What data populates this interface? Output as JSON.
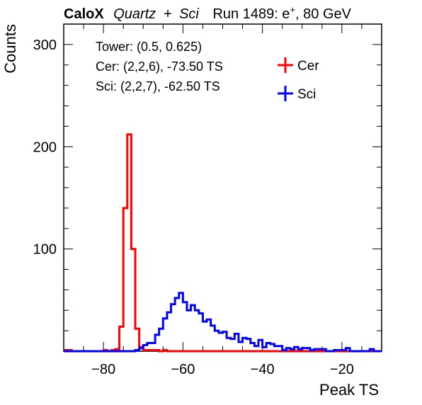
{
  "chart_data": {
    "type": "line",
    "title": {
      "experiment": "CaloX",
      "materials_a": "Quartz",
      "materials_plus": "+",
      "materials_b": "Sci",
      "run_text": "Run 1489: e",
      "run_sup": "+",
      "energy_text": ", 80 GeV"
    },
    "xlabel": "Peak TS",
    "ylabel": "Counts",
    "xlim": [
      -90,
      -10
    ],
    "ylim": [
      0,
      320
    ],
    "x_ticks": [
      -80,
      -60,
      -40,
      -20
    ],
    "x_tick_labels": [
      "−80",
      "−60",
      "−40",
      "−20"
    ],
    "y_ticks": [
      100,
      200,
      300
    ],
    "y_tick_labels": [
      "100",
      "200",
      "300"
    ],
    "bin_width": 1,
    "info_lines": [
      "Tower: (0.5, 0.625)",
      "Cer: (2,2,6), -73.50 TS",
      "Sci: (2,2,7), -62.50 TS"
    ],
    "legend_position": "top-right",
    "series": [
      {
        "name": "Cer",
        "color": "#ff0000",
        "x_start": -90,
        "values": [
          1,
          1,
          0,
          0,
          0,
          0,
          0,
          0,
          0,
          0,
          1,
          0,
          1,
          2,
          24,
          140,
          212,
          100,
          22,
          4,
          1,
          1,
          1,
          1,
          0,
          1,
          0,
          0,
          0,
          0,
          0,
          0,
          0,
          0,
          0,
          0,
          0,
          0,
          0,
          0,
          0,
          0,
          0,
          0,
          0,
          0,
          0,
          0,
          0,
          0,
          0,
          0,
          0,
          0,
          0,
          0,
          0,
          0,
          0,
          0,
          0,
          0,
          0,
          0,
          0,
          0,
          0,
          0,
          0,
          0,
          0,
          0,
          0,
          0,
          0,
          0,
          0,
          0,
          0,
          0
        ]
      },
      {
        "name": "Sci",
        "color": "#0000ff",
        "x_start": -90,
        "values": [
          0,
          0,
          0,
          0,
          0,
          0,
          0,
          0,
          0,
          0,
          0,
          0,
          0,
          0,
          0,
          0,
          0,
          0,
          1,
          3,
          6,
          8,
          8,
          16,
          22,
          32,
          38,
          46,
          52,
          57,
          48,
          40,
          45,
          40,
          37,
          29,
          31,
          25,
          20,
          18,
          19,
          13,
          12,
          17,
          9,
          13,
          12,
          8,
          5,
          11,
          4,
          8,
          7,
          5,
          5,
          1,
          3,
          2,
          4,
          2,
          3,
          3,
          1,
          2,
          2,
          2,
          0,
          0,
          1,
          1,
          1,
          3,
          0,
          0,
          0,
          0,
          0,
          2,
          0,
          0
        ]
      }
    ]
  }
}
